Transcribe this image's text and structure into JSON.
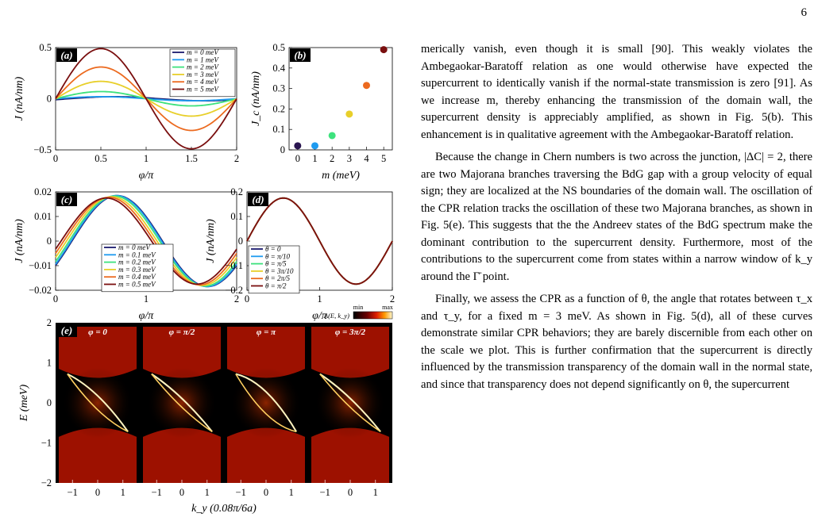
{
  "page_number": "6",
  "figure": {
    "panels": {
      "a": {
        "label": "(a)",
        "xlabel": "φ/π",
        "ylabel": "J (nA/nm)",
        "xticks": [
          "0",
          "0.5",
          "1",
          "1.5",
          "2"
        ],
        "yticks": [
          "−0.5",
          "0",
          "0.5"
        ],
        "legend": [
          "m = 0 meV",
          "m = 1 meV",
          "m = 2 meV",
          "m = 3 meV",
          "m = 4 meV",
          "m = 5 meV"
        ]
      },
      "b": {
        "label": "(b)",
        "xlabel": "m (meV)",
        "ylabel": "J_c (nA/nm)",
        "xticks": [
          "0",
          "1",
          "2",
          "3",
          "4",
          "5"
        ],
        "yticks": [
          "0",
          "0.1",
          "0.2",
          "0.3",
          "0.4",
          "0.5"
        ]
      },
      "c": {
        "label": "(c)",
        "xlabel": "φ/π",
        "ylabel": "J (nA/nm)",
        "xticks": [
          "0",
          "1",
          "2"
        ],
        "yticks": [
          "−0.02",
          "−0.01",
          "0",
          "0.01",
          "0.02"
        ],
        "legend": [
          "m = 0 meV",
          "m = 0.1 meV",
          "m = 0.2 meV",
          "m = 0.3 meV",
          "m = 0.4 meV",
          "m = 0.5 meV"
        ]
      },
      "d": {
        "label": "(d)",
        "xlabel": "φ/π",
        "ylabel": "J (nA/nm)",
        "xticks": [
          "0",
          "1",
          "2"
        ],
        "yticks": [
          "−0.2",
          "−0.1",
          "0",
          "0.1",
          "0.2"
        ],
        "legend": [
          "θ = 0",
          "θ = π/10",
          "θ = π/5",
          "θ = 3π/10",
          "θ = 2π/5",
          "θ = π/2"
        ]
      },
      "e": {
        "label": "(e)",
        "xlabel": "k_y (0.08π/6a)",
        "ylabel": "E (meV)",
        "yticks": [
          "−2",
          "−1",
          "0",
          "1",
          "2"
        ],
        "subpanel_xticks": [
          "−1",
          "0",
          "1"
        ],
        "subpanels": [
          "φ = 0",
          "φ = π/2",
          "φ = π",
          "φ = 3π/2"
        ],
        "colorbar_label": "A(E, k_y)",
        "colorbar_min": "min",
        "colorbar_max": "max"
      }
    }
  },
  "chart_data": [
    {
      "panel": "a",
      "type": "line",
      "xlabel": "φ/π",
      "ylabel": "J (nA/nm)",
      "xlim": [
        0,
        2
      ],
      "ylim": [
        -0.5,
        0.5
      ],
      "series": [
        {
          "name": "m = 0 meV",
          "color": "#1a1a6e",
          "amplitude": 0.02,
          "shift": 0.15
        },
        {
          "name": "m = 1 meV",
          "color": "#1f9bf0",
          "amplitude": 0.02,
          "shift": 0.0
        },
        {
          "name": "m = 2 meV",
          "color": "#3de27d",
          "amplitude": 0.07,
          "shift": 0.0
        },
        {
          "name": "m = 3 meV",
          "color": "#e8cf2a",
          "amplitude": 0.17,
          "shift": 0.0
        },
        {
          "name": "m = 4 meV",
          "color": "#ec6a1f",
          "amplitude": 0.31,
          "shift": 0.0
        },
        {
          "name": "m = 5 meV",
          "color": "#7a0f0f",
          "amplitude": 0.49,
          "shift": 0.0
        }
      ]
    },
    {
      "panel": "b",
      "type": "scatter",
      "xlabel": "m (meV)",
      "ylabel": "J_c (nA/nm)",
      "xlim": [
        -0.5,
        5.5
      ],
      "ylim": [
        0,
        0.5
      ],
      "x": [
        0,
        1,
        2,
        3,
        4,
        5
      ],
      "y": [
        0.02,
        0.02,
        0.07,
        0.175,
        0.315,
        0.49
      ],
      "colors": [
        "#2a1550",
        "#1f9bf0",
        "#3de27d",
        "#e8cf2a",
        "#ec6a1f",
        "#7a0f0f"
      ]
    },
    {
      "panel": "c",
      "type": "line",
      "xlabel": "φ/π",
      "ylabel": "J (nA/nm)",
      "xlim": [
        0,
        2
      ],
      "ylim": [
        -0.02,
        0.02
      ],
      "series": [
        {
          "name": "m = 0 meV",
          "color": "#1a1a6e",
          "amplitude": 0.0185,
          "shift": 0.18
        },
        {
          "name": "m = 0.1 meV",
          "color": "#1f9bf0",
          "amplitude": 0.0185,
          "shift": 0.17
        },
        {
          "name": "m = 0.2 meV",
          "color": "#3de27d",
          "amplitude": 0.0183,
          "shift": 0.15
        },
        {
          "name": "m = 0.3 meV",
          "color": "#e8cf2a",
          "amplitude": 0.018,
          "shift": 0.12
        },
        {
          "name": "m = 0.4 meV",
          "color": "#ec6a1f",
          "amplitude": 0.0178,
          "shift": 0.09
        },
        {
          "name": "m = 0.5 meV",
          "color": "#7a0f0f",
          "amplitude": 0.0175,
          "shift": 0.06
        }
      ]
    },
    {
      "panel": "d",
      "type": "line",
      "xlabel": "φ/π",
      "ylabel": "J (nA/nm)",
      "xlim": [
        0,
        2
      ],
      "ylim": [
        -0.2,
        0.2
      ],
      "series": [
        {
          "name": "θ = 0",
          "color": "#1a1a6e",
          "amplitude": 0.175,
          "shift": 0.0
        },
        {
          "name": "θ = π/10",
          "color": "#1f9bf0",
          "amplitude": 0.175,
          "shift": 0.0
        },
        {
          "name": "θ = π/5",
          "color": "#3de27d",
          "amplitude": 0.175,
          "shift": 0.0
        },
        {
          "name": "θ = 3π/10",
          "color": "#e8cf2a",
          "amplitude": 0.175,
          "shift": 0.0
        },
        {
          "name": "θ = 2π/5",
          "color": "#ec6a1f",
          "amplitude": 0.175,
          "shift": 0.0
        },
        {
          "name": "θ = π/2",
          "color": "#7a0f0f",
          "amplitude": 0.175,
          "shift": 0.0
        }
      ]
    },
    {
      "panel": "e",
      "type": "heatmap",
      "xlabel": "k_y (0.08π/6a)",
      "ylabel": "E (meV)",
      "xlim": [
        -1.8,
        1.8
      ],
      "ylim": [
        -2,
        2
      ],
      "subpanels": [
        "φ = 0",
        "φ = π/2",
        "φ = π",
        "φ = 3π/2"
      ]
    }
  ],
  "text": {
    "paragraphs": [
      {
        "indent": false,
        "text": "merically vanish, even though it is small [90]. This weakly violates the Ambegaokar-Baratoff relation as one would otherwise have expected the supercurrent to identically vanish if the normal-state transmission is zero [91]. As we increase m, thereby enhancing the transmission of the domain wall, the supercurrent density is appreciably amplified, as shown in Fig. 5(b). This enhancement is in qualitative agreement with the Ambegaokar-Baratoff relation."
      },
      {
        "indent": true,
        "text": "Because the change in Chern numbers is two across the junction, |ΔC| = 2, there are two Majorana branches traversing the BdG gap with a group velocity of equal sign; they are localized at the NS boundaries of the domain wall. The oscillation of the CPR relation tracks the oscillation of these two Majorana branches, as shown in Fig. 5(e). This suggests that the the Andreev states of the BdG spectrum make the dominant contribution to the supercurrent density. Furthermore, most of the contributions to the supercurrent come from states within a narrow window of k_y around the Γ̄ point."
      },
      {
        "indent": true,
        "text": "Finally, we assess the CPR as a function of θ, the angle that rotates between τ_x and τ_y, for a fixed m = 3 meV. As shown in Fig. 5(d), all of these curves demonstrate similar CPR behaviors; they are barely discernible from each other on the scale we plot. This is further confirmation that the supercurrent is directly influenced by the transmission transparency of the domain wall in the normal state, and since that transparency does not depend significantly on θ, the supercurrent"
      }
    ]
  }
}
